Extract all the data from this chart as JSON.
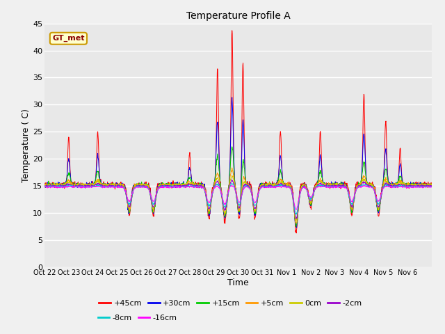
{
  "title": "Temperature Profile A",
  "xlabel": "Time",
  "ylabel": "Temperature (C)",
  "ylim": [
    0,
    45
  ],
  "yticks": [
    0,
    5,
    10,
    15,
    20,
    25,
    30,
    35,
    40,
    45
  ],
  "fig_bg": "#f0f0f0",
  "plot_bg": "#e8e8e8",
  "series_colors": {
    "+45cm": "#ff0000",
    "+30cm": "#0000ee",
    "+15cm": "#00cc00",
    "+5cm": "#ff9900",
    "0cm": "#cccc00",
    "-2cm": "#9900cc",
    "-8cm": "#00cccc",
    "-16cm": "#ff00ff"
  },
  "annotation_text": "GT_met",
  "x_tick_labels": [
    "Oct 22",
    "Oct 23",
    "Oct 24",
    "Oct 25",
    "Oct 26",
    "Oct 27",
    "Oct 28",
    "Oct 29",
    "Oct 30",
    "Oct 31",
    "Nov 1",
    "Nov 2",
    "Nov 3",
    "Nov 4",
    "Nov 5",
    "Nov 6"
  ],
  "n_points": 1440,
  "base_temp": 15.2,
  "seed": 42
}
